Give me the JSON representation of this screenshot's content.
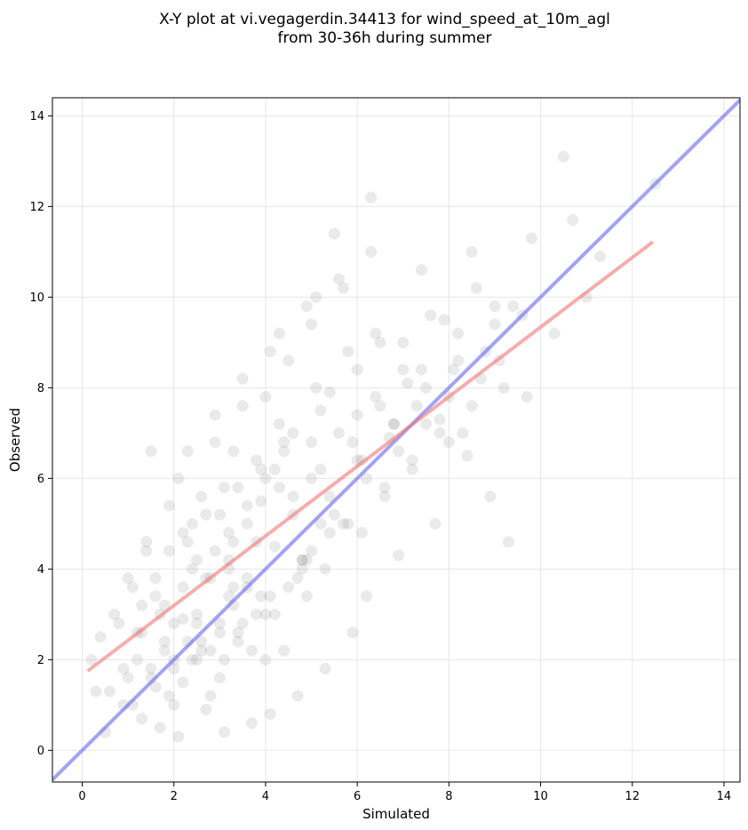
{
  "chart_data": {
    "type": "scatter",
    "title_lines": [
      "X-Y plot at vi.vegagerdin.34413 for wind_speed_at_10m_agl",
      "from 30-36h during summer"
    ],
    "xlabel": "Simulated",
    "ylabel": "Observed",
    "xlim": [
      -0.65,
      14.35
    ],
    "ylim": [
      -0.7,
      14.4
    ],
    "xticks": [
      0,
      2,
      4,
      6,
      8,
      10,
      12,
      14
    ],
    "yticks": [
      0,
      2,
      4,
      6,
      8,
      10,
      12,
      14
    ],
    "grid": true,
    "point_color": "#888888",
    "point_opacity": 0.18,
    "reference_line": {
      "color": "#6666ee",
      "x": [
        -0.65,
        14.35
      ],
      "y": [
        -0.65,
        14.35
      ]
    },
    "fit_line": {
      "color": "#ee7777",
      "x": [
        0.12,
        12.45
      ],
      "y": [
        1.75,
        11.22
      ]
    },
    "points": {
      "x": [
        1.5,
        1.8,
        2.2,
        2.5,
        3.0,
        3.3,
        1.2,
        2.8,
        3.6,
        4.2,
        4.6,
        5.0,
        5.4,
        2.0,
        1.0,
        0.8,
        3.2,
        3.9,
        4.4,
        5.2,
        6.1,
        6.8,
        7.5,
        8.2,
        2.4,
        1.6,
        0.6,
        0.4,
        3.4,
        4.8,
        5.8,
        6.4,
        7.2,
        7.9,
        8.8,
        9.4,
        2.6,
        3.8,
        4.0,
        4.9,
        5.6,
        6.0,
        6.6,
        7.0,
        1.4,
        1.9,
        2.3,
        2.9,
        3.5,
        4.3,
        5.1,
        5.5,
        6.3,
        7.4,
        8.5,
        9.0,
        9.8,
        10.3,
        11.0,
        12.5,
        10.5,
        11.3,
        10.7,
        9.6,
        8.0,
        7.7,
        6.9,
        6.2,
        5.9,
        5.3,
        4.7,
        4.1,
        3.7,
        3.1,
        2.7,
        2.1,
        1.7,
        1.3,
        0.9,
        0.5,
        0.3,
        0.2,
        1.1,
        1.9,
        2.6,
        3.3,
        4.0,
        4.5,
        5.0,
        5.7,
        6.5,
        7.1,
        7.8,
        8.4,
        8.9,
        9.3,
        2.2,
        2.5,
        3.0,
        3.4,
        3.6,
        4.2,
        4.4,
        4.8,
        5.2,
        2.0,
        1.6,
        1.3,
        2.8,
        3.2,
        1.8,
        2.4,
        3.9,
        4.6,
        5.4,
        6.0,
        6.7,
        7.3,
        8.1,
        3.0,
        2.1,
        1.5,
        2.9,
        3.5,
        4.1,
        4.9,
        5.6,
        6.3,
        7.6,
        8.6,
        9.1,
        9.7,
        0.7,
        1.0,
        1.4,
        2.3,
        2.7,
        3.1,
        3.8,
        4.3,
        5.1,
        5.8,
        6.4,
        7.0,
        8.3,
        3.2,
        4.5,
        5.3,
        6.1,
        2.6,
        3.7,
        4.0,
        4.7,
        5.0,
        5.5,
        6.2,
        6.9,
        7.5,
        8.0,
        8.7,
        1.2,
        1.7,
        2.2,
        2.5,
        3.3,
        3.6,
        4.2,
        4.4,
        2.0,
        2.8,
        3.4,
        1.9,
        1.1,
        0.9,
        1.5,
        2.4,
        3.0,
        3.9,
        4.8,
        5.7,
        6.6,
        7.2,
        7.8,
        8.5,
        9.2,
        2.2,
        3.2,
        3.8,
        4.6,
        5.2,
        5.9,
        6.5,
        7.4,
        8.2,
        9.0,
        2.7,
        1.6,
        1.3,
        2.0,
        3.5,
        4.1,
        4.9,
        5.4,
        6.0,
        6.8,
        3.1,
        1.8,
        2.5,
        4.3,
        5.0,
        4.0,
        3.6,
        3.3,
        2.9,
        2.3
      ],
      "y": [
        1.8,
        2.4,
        1.5,
        3.0,
        2.6,
        3.2,
        2.0,
        1.2,
        3.8,
        4.5,
        5.2,
        6.0,
        4.8,
        1.0,
        1.6,
        2.8,
        4.2,
        5.5,
        6.8,
        7.5,
        6.4,
        7.2,
        8.0,
        8.6,
        4.0,
        3.4,
        1.3,
        2.5,
        5.8,
        4.0,
        5.0,
        7.8,
        6.2,
        9.5,
        8.8,
        9.8,
        2.2,
        3.0,
        2.0,
        3.4,
        7.0,
        8.4,
        5.6,
        9.0,
        4.6,
        5.4,
        6.6,
        7.4,
        8.2,
        9.2,
        10.0,
        11.4,
        12.2,
        10.6,
        11.0,
        9.4,
        11.3,
        9.2,
        10.0,
        12.5,
        13.1,
        10.9,
        11.7,
        9.6,
        6.8,
        5.0,
        4.3,
        3.4,
        2.6,
        1.8,
        1.2,
        0.8,
        0.6,
        0.4,
        0.9,
        0.3,
        0.5,
        0.7,
        1.0,
        0.4,
        1.3,
        2.0,
        3.6,
        4.4,
        5.6,
        6.6,
        7.8,
        8.6,
        9.4,
        10.2,
        9.0,
        8.1,
        7.3,
        6.5,
        5.6,
        4.6,
        2.9,
        2.0,
        1.6,
        2.4,
        3.6,
        3.0,
        2.2,
        4.2,
        5.0,
        2.8,
        1.4,
        2.6,
        3.8,
        4.8,
        3.2,
        5.0,
        6.2,
        7.0,
        7.9,
        7.4,
        6.9,
        7.6,
        8.4,
        5.2,
        6.0,
        6.6,
        6.8,
        7.6,
        8.8,
        9.8,
        10.4,
        11.0,
        9.6,
        10.2,
        8.6,
        7.8,
        3.0,
        3.8,
        4.4,
        4.6,
        5.2,
        5.8,
        6.4,
        7.2,
        8.0,
        8.8,
        9.2,
        8.4,
        7.0,
        3.4,
        3.6,
        4.0,
        4.8,
        2.4,
        2.2,
        3.0,
        3.8,
        4.4,
        5.2,
        6.0,
        6.6,
        7.2,
        7.8,
        8.2,
        2.6,
        3.0,
        3.6,
        4.2,
        4.6,
        5.4,
        6.2,
        6.6,
        1.8,
        2.2,
        2.6,
        1.2,
        1.0,
        1.8,
        1.6,
        2.0,
        2.8,
        3.4,
        4.2,
        5.0,
        5.8,
        6.4,
        7.0,
        7.6,
        8.0,
        4.8,
        4.0,
        4.6,
        5.6,
        6.2,
        6.8,
        7.6,
        8.4,
        9.2,
        9.8,
        3.8,
        3.8,
        3.2,
        2.0,
        2.8,
        3.4,
        4.2,
        5.6,
        6.4,
        7.2,
        2.0,
        2.2,
        2.8,
        5.8,
        6.8,
        6.0,
        5.0,
        3.6,
        4.4,
        2.4
      ]
    }
  }
}
